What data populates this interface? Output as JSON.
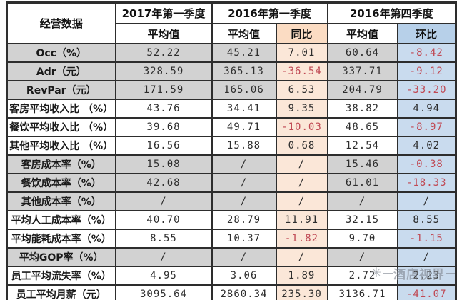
{
  "table": {
    "corner_label": "经营数据",
    "col_groups": [
      {
        "label": "2017年第一季度",
        "sub": [
          "平均值"
        ]
      },
      {
        "label": "2016年第一季度",
        "sub": [
          "平均值",
          "同比"
        ]
      },
      {
        "label": "2016年第四季度",
        "sub": [
          "平均值",
          "环比"
        ]
      }
    ],
    "rows": [
      {
        "label": "Occ（%）",
        "values": [
          "52.22",
          "45.21",
          "7.01",
          "60.64",
          "-8.42"
        ],
        "shaded": true
      },
      {
        "label": "Adr（元）",
        "values": [
          "328.59",
          "365.13",
          "-36.54",
          "337.71",
          "-9.12"
        ],
        "shaded": true
      },
      {
        "label": "RevPar（元）",
        "values": [
          "171.59",
          "165.06",
          "6.53",
          "204.79",
          "-33.20"
        ],
        "shaded": true
      },
      {
        "label": "客房平均收入比 （%）",
        "values": [
          "43.76",
          "34.41",
          "9.35",
          "38.82",
          "4.94"
        ],
        "shaded": false
      },
      {
        "label": "餐饮平均收入比 （%）",
        "values": [
          "39.68",
          "49.71",
          "-10.03",
          "48.65",
          "-8.97"
        ],
        "shaded": false
      },
      {
        "label": "其他平均收入比 （%）",
        "values": [
          "16.56",
          "15.88",
          "0.68",
          "12.54",
          "4.02"
        ],
        "shaded": false
      },
      {
        "label": "客房成本率（%）",
        "values": [
          "15.08",
          "/",
          "/",
          "15.46",
          "-0.38"
        ],
        "shaded": true
      },
      {
        "label": "餐饮成本率（%）",
        "values": [
          "42.68",
          "/",
          "/",
          "61.01",
          "-18.33"
        ],
        "shaded": true
      },
      {
        "label": "其他成本率（%）",
        "values": [
          "/",
          "/",
          "/",
          "/",
          "/"
        ],
        "shaded": true
      },
      {
        "label": "平均人工成本率（%）",
        "values": [
          "40.70",
          "28.79",
          "11.91",
          "32.15",
          "8.55"
        ],
        "shaded": false
      },
      {
        "label": "平均能耗成本率（%）",
        "values": [
          "8.55",
          "10.37",
          "-1.82",
          "9.70",
          "-1.15"
        ],
        "shaded": false
      },
      {
        "label": "平均GOP率（%）",
        "values": [
          "/",
          "/",
          "/",
          "/",
          "/"
        ],
        "shaded": true
      },
      {
        "label": "员工平均流失率（%）",
        "values": [
          "4.95",
          "3.06",
          "1.89",
          "2.72",
          "2.23"
        ],
        "shaded": false
      },
      {
        "label": "员工平均月薪（元）",
        "values": [
          "3095.64",
          "2860.34",
          "235.30",
          "3136.71",
          "-41.07"
        ],
        "shaded": false
      }
    ]
  },
  "watermark": {
    "icon": "✳",
    "text": "酒店视界"
  },
  "colors": {
    "row-gray": "#d2d2d2",
    "cell-peach": "#fbe7d8",
    "header-peach": "#fbdcc3",
    "cell-blue": "#c9dbee",
    "header-blue": "#b7d0e9",
    "negative-red": "#c04a55"
  },
  "chart_data": {
    "type": "table",
    "title": "经营数据",
    "columns": [
      "经营数据",
      "2017年第一季度 平均值",
      "2016年第一季度 平均值",
      "2016年第一季度 同比",
      "2016年第四季度 平均值",
      "2016年第四季度 环比"
    ],
    "rows": [
      [
        "Occ（%）",
        52.22,
        45.21,
        7.01,
        60.64,
        -8.42
      ],
      [
        "Adr（元）",
        328.59,
        365.13,
        -36.54,
        337.71,
        -9.12
      ],
      [
        "RevPar（元）",
        171.59,
        165.06,
        6.53,
        204.79,
        -33.2
      ],
      [
        "客房平均收入比 （%）",
        43.76,
        34.41,
        9.35,
        38.82,
        4.94
      ],
      [
        "餐饮平均收入比 （%）",
        39.68,
        49.71,
        -10.03,
        48.65,
        -8.97
      ],
      [
        "其他平均收入比 （%）",
        16.56,
        15.88,
        0.68,
        12.54,
        4.02
      ],
      [
        "客房成本率（%）",
        15.08,
        null,
        null,
        15.46,
        -0.38
      ],
      [
        "餐饮成本率（%）",
        42.68,
        null,
        null,
        61.01,
        -18.33
      ],
      [
        "其他成本率（%）",
        null,
        null,
        null,
        null,
        null
      ],
      [
        "平均人工成本率（%）",
        40.7,
        28.79,
        11.91,
        32.15,
        8.55
      ],
      [
        "平均能耗成本率（%）",
        8.55,
        10.37,
        -1.82,
        9.7,
        -1.15
      ],
      [
        "平均GOP率（%）",
        null,
        null,
        null,
        null,
        null
      ],
      [
        "员工平均流失率（%）",
        4.95,
        3.06,
        1.89,
        2.72,
        2.23
      ],
      [
        "员工平均月薪（元）",
        3095.64,
        2860.34,
        235.3,
        3136.71,
        -41.07
      ]
    ]
  }
}
